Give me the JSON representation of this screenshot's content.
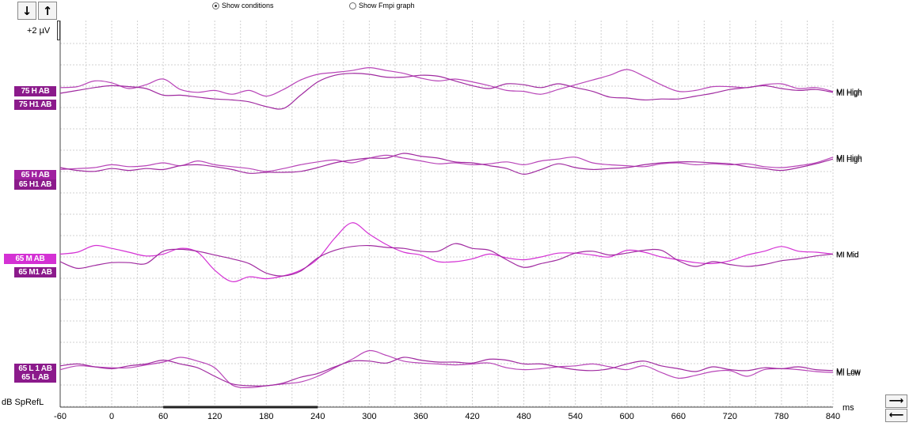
{
  "toolbar": {
    "down_arrow": "↓",
    "up_arrow": "↑"
  },
  "options": {
    "show_conditions": "Show conditions",
    "show_fmpi": "Show Fmpi graph",
    "selected": "show_conditions"
  },
  "scale_label": "+2 µV",
  "y_axis_label": "dB SpRefL",
  "x_unit": "ms",
  "corner_buttons": {
    "right_arrow": "⟶",
    "left_arrow": "⟵"
  },
  "colors": {
    "dark_magenta": "#8b1a8b",
    "bright_magenta": "#d431d4",
    "grid": "#d0d0d0",
    "trace": "#b845b8"
  },
  "chart_data": {
    "type": "line",
    "x_ticks": [
      -60,
      0,
      60,
      120,
      180,
      240,
      300,
      360,
      420,
      480,
      540,
      600,
      660,
      720,
      780,
      840
    ],
    "xlim": [
      -60,
      840
    ],
    "x_unit": "ms",
    "ylabel": "dB SpRefL",
    "scale": "+2 µV",
    "grid": true,
    "groups": [
      {
        "left_labels": [
          {
            "text": "75 H AB",
            "color": "#8b1a8b"
          },
          {
            "text": "75 H1 AB",
            "color": "#8b1a8b"
          }
        ],
        "right_labels": [
          "MI High",
          "MI High"
        ]
      },
      {
        "left_labels": [
          {
            "text": "65 H AB",
            "color": "#a020a0"
          },
          {
            "text": "65 H1 AB",
            "color": "#8b1a8b"
          }
        ],
        "right_labels": [
          "MI High",
          "MI High"
        ]
      },
      {
        "left_labels": [
          {
            "text": "65 M AB",
            "color": "#d431d4"
          },
          {
            "text": "65 M1 AB",
            "color": "#8b1a8b"
          }
        ],
        "right_labels": [
          "MI Mid",
          "MI Mid"
        ]
      },
      {
        "left_labels": [
          {
            "text": "65 L 1 AB",
            "color": "#8b1a8b"
          },
          {
            "text": "65 L AB",
            "color": "#8b1a8b"
          }
        ],
        "right_labels": [
          "MI Low",
          "MI Low"
        ]
      }
    ],
    "series": [
      {
        "group": 0,
        "color": "#b845b8",
        "x": [
          -60,
          -40,
          -20,
          0,
          20,
          40,
          60,
          80,
          100,
          120,
          140,
          160,
          180,
          200,
          220,
          240,
          260,
          280,
          300,
          320,
          340,
          360,
          380,
          400,
          420,
          440,
          460,
          480,
          500,
          520,
          540,
          560,
          580,
          600,
          620,
          640,
          660,
          680,
          700,
          720,
          740,
          760,
          780,
          800,
          820,
          840
        ],
        "y": [
          0.6,
          0.7,
          1.3,
          1.1,
          0.5,
          0.9,
          1.5,
          0.4,
          0.1,
          0.3,
          -0.1,
          0.3,
          -0.3,
          0.4,
          1.4,
          2.0,
          2.2,
          2.4,
          2.7,
          2.4,
          2.1,
          1.6,
          1.3,
          1.5,
          1.2,
          0.8,
          0.3,
          0.2,
          -0.1,
          0.4,
          0.9,
          1.4,
          1.9,
          2.5,
          1.8,
          0.9,
          0.2,
          0.3,
          0.7,
          0.7,
          0.6,
          0.9,
          1.0,
          0.5,
          0.6,
          0.2
        ]
      },
      {
        "group": 0,
        "color": "#a02aa0",
        "x": [
          -60,
          -40,
          -20,
          0,
          20,
          40,
          60,
          80,
          100,
          120,
          140,
          160,
          180,
          200,
          220,
          240,
          260,
          280,
          300,
          320,
          340,
          360,
          380,
          400,
          420,
          440,
          460,
          480,
          500,
          520,
          540,
          560,
          580,
          600,
          620,
          640,
          660,
          680,
          700,
          720,
          740,
          760,
          780,
          800,
          820,
          840
        ],
        "y": [
          0.0,
          0.3,
          0.6,
          0.8,
          0.7,
          0.5,
          -0.2,
          -0.2,
          -0.4,
          -0.6,
          -0.7,
          -0.9,
          -1.4,
          -1.6,
          -0.2,
          1.2,
          1.9,
          2.1,
          2.0,
          1.7,
          1.7,
          1.9,
          1.8,
          1.3,
          0.8,
          0.5,
          1.0,
          0.9,
          0.6,
          1.0,
          0.6,
          0.2,
          -0.4,
          -0.5,
          -0.7,
          -0.6,
          -0.6,
          -0.3,
          0.0,
          0.4,
          0.6,
          0.8,
          0.5,
          0.3,
          0.4,
          0.1
        ]
      },
      {
        "group": 1,
        "color": "#b845b8",
        "x": [
          -60,
          -40,
          -20,
          0,
          20,
          40,
          60,
          80,
          100,
          120,
          140,
          160,
          180,
          200,
          220,
          240,
          260,
          280,
          300,
          320,
          340,
          360,
          380,
          400,
          420,
          440,
          460,
          480,
          500,
          520,
          540,
          560,
          580,
          600,
          620,
          640,
          660,
          680,
          700,
          720,
          740,
          760,
          780,
          800,
          820,
          840
        ],
        "y": [
          0.3,
          0.4,
          0.5,
          0.8,
          0.6,
          0.7,
          1.0,
          0.7,
          1.2,
          0.8,
          0.6,
          0.4,
          0.1,
          0.4,
          0.8,
          1.1,
          1.3,
          1.0,
          1.5,
          1.8,
          1.5,
          1.2,
          0.9,
          1.0,
          0.8,
          0.9,
          1.1,
          0.8,
          1.2,
          1.4,
          1.6,
          1.0,
          0.8,
          0.7,
          0.6,
          0.9,
          1.0,
          0.8,
          0.9,
          0.8,
          0.9,
          0.6,
          0.5,
          0.7,
          1.0,
          1.6
        ]
      },
      {
        "group": 1,
        "color": "#a02aa0",
        "x": [
          -60,
          -40,
          -20,
          0,
          20,
          40,
          60,
          80,
          100,
          120,
          140,
          160,
          180,
          200,
          220,
          240,
          260,
          280,
          300,
          320,
          340,
          360,
          380,
          400,
          420,
          440,
          460,
          480,
          500,
          520,
          540,
          560,
          580,
          600,
          620,
          640,
          660,
          680,
          700,
          720,
          740,
          760,
          780,
          800,
          820,
          840
        ],
        "y": [
          0.5,
          0.2,
          0.1,
          0.4,
          0.2,
          0.4,
          0.3,
          0.7,
          0.8,
          0.6,
          0.3,
          -0.1,
          0.0,
          0.0,
          0.1,
          0.5,
          1.0,
          1.3,
          1.5,
          1.5,
          2.0,
          1.7,
          1.5,
          1.1,
          1.0,
          0.7,
          0.4,
          -0.2,
          0.3,
          0.9,
          0.5,
          0.3,
          0.4,
          0.5,
          0.8,
          1.0,
          1.1,
          1.1,
          1.0,
          0.9,
          0.6,
          0.4,
          0.2,
          0.5,
          0.9,
          1.4
        ]
      },
      {
        "group": 2,
        "color": "#d431d4",
        "x": [
          -60,
          -40,
          -20,
          0,
          20,
          40,
          60,
          80,
          100,
          120,
          140,
          160,
          180,
          200,
          220,
          240,
          260,
          280,
          300,
          320,
          340,
          360,
          380,
          400,
          420,
          440,
          460,
          480,
          500,
          520,
          540,
          560,
          580,
          600,
          620,
          640,
          660,
          680,
          700,
          720,
          740,
          760,
          780,
          800,
          820,
          840
        ],
        "y": [
          0.3,
          0.5,
          1.2,
          0.9,
          0.5,
          0.1,
          0.3,
          0.9,
          0.5,
          -1.4,
          -2.6,
          -2.1,
          -2.3,
          -2.0,
          -1.4,
          -0.2,
          2.0,
          3.6,
          2.4,
          1.3,
          0.5,
          0.2,
          -0.5,
          -0.5,
          -0.2,
          0.3,
          -0.1,
          -0.3,
          0.0,
          0.4,
          0.4,
          0.2,
          0.0,
          0.7,
          0.5,
          0.0,
          -0.3,
          -0.6,
          -0.7,
          -0.4,
          0.2,
          0.6,
          1.1,
          0.6,
          0.5,
          0.3
        ]
      },
      {
        "group": 2,
        "color": "#a02aa0",
        "x": [
          -60,
          -40,
          -20,
          0,
          20,
          40,
          60,
          80,
          100,
          120,
          140,
          160,
          180,
          200,
          220,
          240,
          260,
          280,
          300,
          320,
          340,
          360,
          380,
          400,
          420,
          440,
          460,
          480,
          500,
          520,
          540,
          560,
          580,
          600,
          620,
          640,
          660,
          680,
          700,
          720,
          740,
          760,
          780,
          800,
          820,
          840
        ],
        "y": [
          -0.5,
          -1.2,
          -0.9,
          -0.6,
          -0.6,
          -0.7,
          0.6,
          0.8,
          0.6,
          0.2,
          -0.2,
          -0.7,
          -1.7,
          -2.0,
          -1.5,
          -0.1,
          0.7,
          1.1,
          1.2,
          1.0,
          0.9,
          0.6,
          0.6,
          1.4,
          0.9,
          0.7,
          -0.3,
          -1.1,
          -0.7,
          -0.3,
          0.4,
          0.6,
          0.2,
          0.4,
          0.7,
          0.7,
          -0.4,
          -1.0,
          -0.5,
          -0.8,
          -1.0,
          -0.8,
          -0.4,
          -0.2,
          0.1,
          0.3
        ]
      },
      {
        "group": 3,
        "color": "#b845b8",
        "x": [
          -60,
          -40,
          -20,
          0,
          20,
          40,
          60,
          80,
          100,
          120,
          140,
          160,
          180,
          200,
          220,
          240,
          260,
          280,
          300,
          320,
          340,
          360,
          380,
          400,
          420,
          440,
          460,
          480,
          500,
          520,
          540,
          560,
          580,
          600,
          620,
          640,
          660,
          680,
          700,
          720,
          740,
          760,
          780,
          800,
          820,
          840
        ],
        "y": [
          0.2,
          0.6,
          0.5,
          0.4,
          0.4,
          0.7,
          1.0,
          1.5,
          1.1,
          0.4,
          -1.4,
          -1.7,
          -1.5,
          -1.3,
          -1.1,
          -0.5,
          0.4,
          1.3,
          2.2,
          1.7,
          1.1,
          0.9,
          0.8,
          0.7,
          0.8,
          0.9,
          0.4,
          0.2,
          0.3,
          0.5,
          0.6,
          0.8,
          0.5,
          0.2,
          0.6,
          -0.1,
          -0.7,
          -0.4,
          0.0,
          0.1,
          -0.5,
          0.2,
          0.3,
          0.2,
          0.0,
          -0.1
        ]
      },
      {
        "group": 3,
        "color": "#a02aa0",
        "x": [
          -60,
          -40,
          -20,
          0,
          20,
          40,
          60,
          80,
          100,
          120,
          140,
          160,
          180,
          200,
          220,
          240,
          260,
          280,
          300,
          320,
          340,
          360,
          380,
          400,
          420,
          440,
          460,
          480,
          500,
          520,
          540,
          560,
          580,
          600,
          620,
          640,
          660,
          680,
          700,
          720,
          740,
          760,
          780,
          800,
          820,
          840
        ],
        "y": [
          0.6,
          0.8,
          0.5,
          0.3,
          0.6,
          0.8,
          1.2,
          0.8,
          0.4,
          -0.5,
          -1.3,
          -1.5,
          -1.5,
          -1.2,
          -0.6,
          -0.2,
          0.5,
          1.1,
          1.1,
          0.9,
          1.5,
          1.2,
          1.0,
          1.0,
          0.9,
          1.3,
          1.2,
          0.8,
          0.8,
          0.5,
          0.2,
          0.1,
          0.3,
          0.8,
          1.1,
          0.6,
          0.3,
          0.0,
          0.5,
          0.2,
          0.1,
          0.4,
          0.3,
          0.5,
          0.2,
          0.1
        ]
      }
    ]
  }
}
